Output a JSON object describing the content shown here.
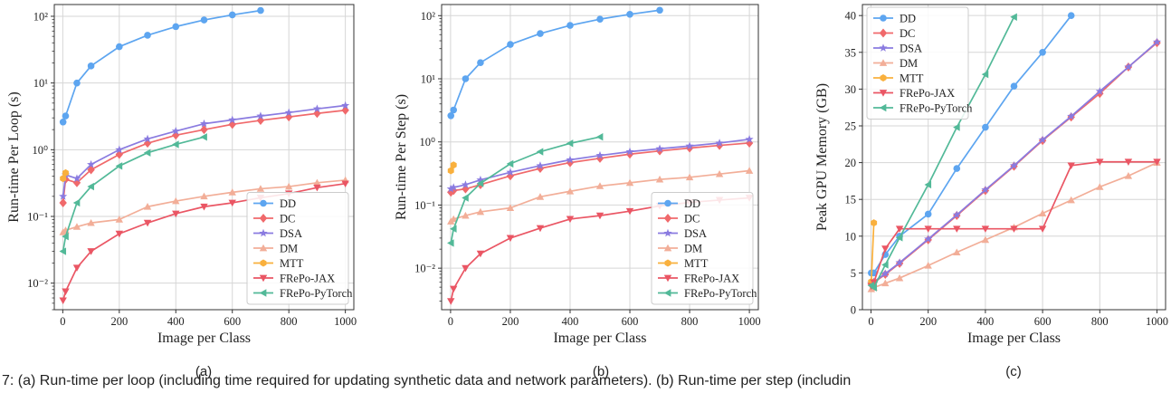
{
  "colors": {
    "DD": "#5DA5F0",
    "DC": "#F0696B",
    "DSA": "#8A7BE0",
    "DM": "#F2AE98",
    "MTT": "#F9B03D",
    "FRePo-JAX": "#EA5664",
    "FRePo-PyTorch": "#52B998"
  },
  "caption": "7: (a) Run-time per loop (including time required for updating synthetic data and network parameters). (b) Run-time per step (includin",
  "chart_data": [
    {
      "type": "line",
      "panel_label": "(a)",
      "xlabel": "Image per Class",
      "ylabel": "Run-time Per Loop (s)",
      "yscale": "log",
      "xlim": [
        -30,
        1030
      ],
      "ylim": [
        0.004,
        150
      ],
      "xticks": [
        0,
        200,
        400,
        600,
        800,
        1000
      ],
      "yticks": [
        0.01,
        0.1,
        1,
        10,
        100
      ],
      "ytick_labels": [
        "10⁻²",
        "10⁻¹",
        "10⁰",
        "10¹",
        "10²"
      ],
      "grid": true,
      "legend_position": "lower-right",
      "series": [
        {
          "name": "DD",
          "marker": "circle",
          "x": [
            1,
            10,
            50,
            100,
            200,
            300,
            400,
            500,
            600,
            700
          ],
          "y": [
            2.6,
            3.2,
            10,
            18,
            35,
            52,
            70,
            88,
            105,
            122
          ]
        },
        {
          "name": "DC",
          "marker": "diamond",
          "x": [
            1,
            10,
            50,
            100,
            200,
            300,
            400,
            500,
            600,
            700,
            800,
            900,
            1000
          ],
          "y": [
            0.16,
            0.36,
            0.32,
            0.5,
            0.85,
            1.25,
            1.65,
            2.0,
            2.4,
            2.75,
            3.1,
            3.5,
            3.9
          ]
        },
        {
          "name": "DSA",
          "marker": "star",
          "x": [
            1,
            10,
            50,
            100,
            200,
            300,
            400,
            500,
            600,
            700,
            800,
            900,
            1000
          ],
          "y": [
            0.2,
            0.42,
            0.37,
            0.6,
            1.0,
            1.45,
            1.9,
            2.45,
            2.8,
            3.2,
            3.6,
            4.1,
            4.6
          ]
        },
        {
          "name": "DM",
          "marker": "triangle-up",
          "x": [
            1,
            10,
            50,
            100,
            200,
            300,
            400,
            500,
            600,
            700,
            800,
            900,
            1000
          ],
          "y": [
            0.058,
            0.062,
            0.07,
            0.08,
            0.09,
            0.14,
            0.17,
            0.2,
            0.23,
            0.26,
            0.28,
            0.32,
            0.35
          ]
        },
        {
          "name": "MTT",
          "marker": "hexagon",
          "x": [
            1,
            10
          ],
          "y": [
            0.37,
            0.45
          ]
        },
        {
          "name": "FRePo-JAX",
          "marker": "triangle-down",
          "x": [
            1,
            10,
            50,
            100,
            200,
            300,
            400,
            500,
            600,
            700,
            800,
            900,
            1000
          ],
          "y": [
            0.0055,
            0.0075,
            0.017,
            0.03,
            0.055,
            0.08,
            0.11,
            0.14,
            0.16,
            0.19,
            0.22,
            0.27,
            0.31
          ]
        },
        {
          "name": "FRePo-PyTorch",
          "marker": "triangle-left",
          "x": [
            1,
            10,
            50,
            100,
            200,
            300,
            400,
            500
          ],
          "y": [
            0.03,
            0.05,
            0.16,
            0.28,
            0.57,
            0.9,
            1.2,
            1.55
          ]
        }
      ]
    },
    {
      "type": "line",
      "panel_label": "(b)",
      "xlabel": "Image per Class",
      "ylabel": "Run-time Per Step (s)",
      "yscale": "log",
      "xlim": [
        -30,
        1030
      ],
      "ylim": [
        0.0022,
        150
      ],
      "xticks": [
        0,
        200,
        400,
        600,
        800,
        1000
      ],
      "yticks": [
        0.01,
        0.1,
        1,
        10,
        100
      ],
      "ytick_labels": [
        "10⁻²",
        "10⁻¹",
        "10⁰",
        "10¹",
        "10²"
      ],
      "grid": true,
      "legend_position": "lower-right",
      "series": [
        {
          "name": "DD",
          "marker": "circle",
          "x": [
            1,
            10,
            50,
            100,
            200,
            300,
            400,
            500,
            600,
            700
          ],
          "y": [
            2.6,
            3.2,
            10,
            18,
            35,
            52,
            70,
            88,
            105,
            122
          ]
        },
        {
          "name": "DC",
          "marker": "diamond",
          "x": [
            1,
            10,
            50,
            100,
            200,
            300,
            400,
            500,
            600,
            700,
            800,
            900,
            1000
          ],
          "y": [
            0.16,
            0.17,
            0.18,
            0.21,
            0.29,
            0.38,
            0.47,
            0.55,
            0.64,
            0.72,
            0.8,
            0.88,
            0.96
          ]
        },
        {
          "name": "DSA",
          "marker": "star",
          "x": [
            1,
            10,
            50,
            100,
            200,
            300,
            400,
            500,
            600,
            700,
            800,
            900,
            1000
          ],
          "y": [
            0.18,
            0.19,
            0.21,
            0.25,
            0.33,
            0.42,
            0.52,
            0.61,
            0.7,
            0.78,
            0.86,
            0.96,
            1.1
          ]
        },
        {
          "name": "DM",
          "marker": "triangle-up",
          "x": [
            1,
            10,
            50,
            100,
            200,
            300,
            400,
            500,
            600,
            700,
            800,
            900,
            1000
          ],
          "y": [
            0.055,
            0.06,
            0.068,
            0.078,
            0.09,
            0.135,
            0.165,
            0.2,
            0.225,
            0.255,
            0.275,
            0.31,
            0.35
          ]
        },
        {
          "name": "MTT",
          "marker": "hexagon",
          "x": [
            1,
            10
          ],
          "y": [
            0.35,
            0.43
          ]
        },
        {
          "name": "FRePo-JAX",
          "marker": "triangle-down",
          "x": [
            1,
            10,
            50,
            100,
            200,
            300,
            400,
            500,
            600,
            700,
            800,
            900,
            1000
          ],
          "y": [
            0.003,
            0.0047,
            0.01,
            0.017,
            0.03,
            0.043,
            0.06,
            0.068,
            0.08,
            0.097,
            0.11,
            0.12,
            0.13
          ]
        },
        {
          "name": "FRePo-PyTorch",
          "marker": "triangle-left",
          "x": [
            1,
            10,
            50,
            100,
            200,
            300,
            400,
            500
          ],
          "y": [
            0.025,
            0.042,
            0.13,
            0.22,
            0.45,
            0.7,
            0.95,
            1.2
          ]
        }
      ]
    },
    {
      "type": "line",
      "panel_label": "(c)",
      "xlabel": "Image per Class",
      "ylabel": "Peak GPU Memory (GB)",
      "yscale": "linear",
      "xlim": [
        -30,
        1030
      ],
      "ylim": [
        0,
        41.5
      ],
      "xticks": [
        0,
        200,
        400,
        600,
        800,
        1000
      ],
      "yticks": [
        0,
        5,
        10,
        15,
        20,
        25,
        30,
        35,
        40
      ],
      "ytick_labels": [
        "0",
        "5",
        "10",
        "15",
        "20",
        "25",
        "30",
        "35",
        "40"
      ],
      "grid": true,
      "legend_position": "upper-left",
      "series": [
        {
          "name": "DD",
          "marker": "circle",
          "x": [
            1,
            10,
            50,
            100,
            200,
            300,
            400,
            500,
            600,
            700
          ],
          "y": [
            5.0,
            5.0,
            7.5,
            10.0,
            13.0,
            19.2,
            24.8,
            30.4,
            35.0,
            40.0
          ]
        },
        {
          "name": "DC",
          "marker": "diamond",
          "x": [
            1,
            10,
            50,
            100,
            200,
            300,
            400,
            500,
            600,
            700,
            800,
            900,
            1000
          ],
          "y": [
            3.5,
            3.7,
            4.8,
            6.3,
            9.5,
            12.8,
            16.2,
            19.5,
            23.0,
            26.2,
            29.4,
            33.0,
            36.3
          ]
        },
        {
          "name": "DSA",
          "marker": "star",
          "x": [
            1,
            10,
            50,
            100,
            200,
            300,
            400,
            500,
            600,
            700,
            800,
            900,
            1000
          ],
          "y": [
            3.6,
            3.8,
            4.9,
            6.4,
            9.6,
            12.9,
            16.3,
            19.6,
            23.1,
            26.3,
            29.7,
            33.0,
            36.4
          ]
        },
        {
          "name": "DM",
          "marker": "triangle-up",
          "x": [
            1,
            10,
            50,
            100,
            200,
            300,
            400,
            500,
            600,
            700,
            800,
            900,
            1000
          ],
          "y": [
            2.8,
            3.0,
            3.6,
            4.3,
            6.0,
            7.8,
            9.5,
            11.2,
            13.1,
            14.9,
            16.7,
            18.2,
            20.0
          ]
        },
        {
          "name": "MTT",
          "marker": "hexagon",
          "x": [
            1,
            10
          ],
          "y": [
            3.8,
            11.8
          ]
        },
        {
          "name": "FRePo-JAX",
          "marker": "triangle-down",
          "x": [
            1,
            10,
            50,
            100,
            200,
            300,
            400,
            500,
            600,
            700,
            800,
            900,
            1000
          ],
          "y": [
            3.2,
            3.7,
            8.3,
            11.0,
            11.0,
            11.0,
            11.0,
            11.0,
            11.0,
            19.6,
            20.1,
            20.1,
            20.1
          ]
        },
        {
          "name": "FRePo-PyTorch",
          "marker": "triangle-left",
          "x": [
            1,
            10,
            50,
            100,
            200,
            300,
            400,
            500
          ],
          "y": [
            3.3,
            3.0,
            6.1,
            9.8,
            17.0,
            24.8,
            32.0,
            39.8
          ]
        }
      ]
    }
  ]
}
